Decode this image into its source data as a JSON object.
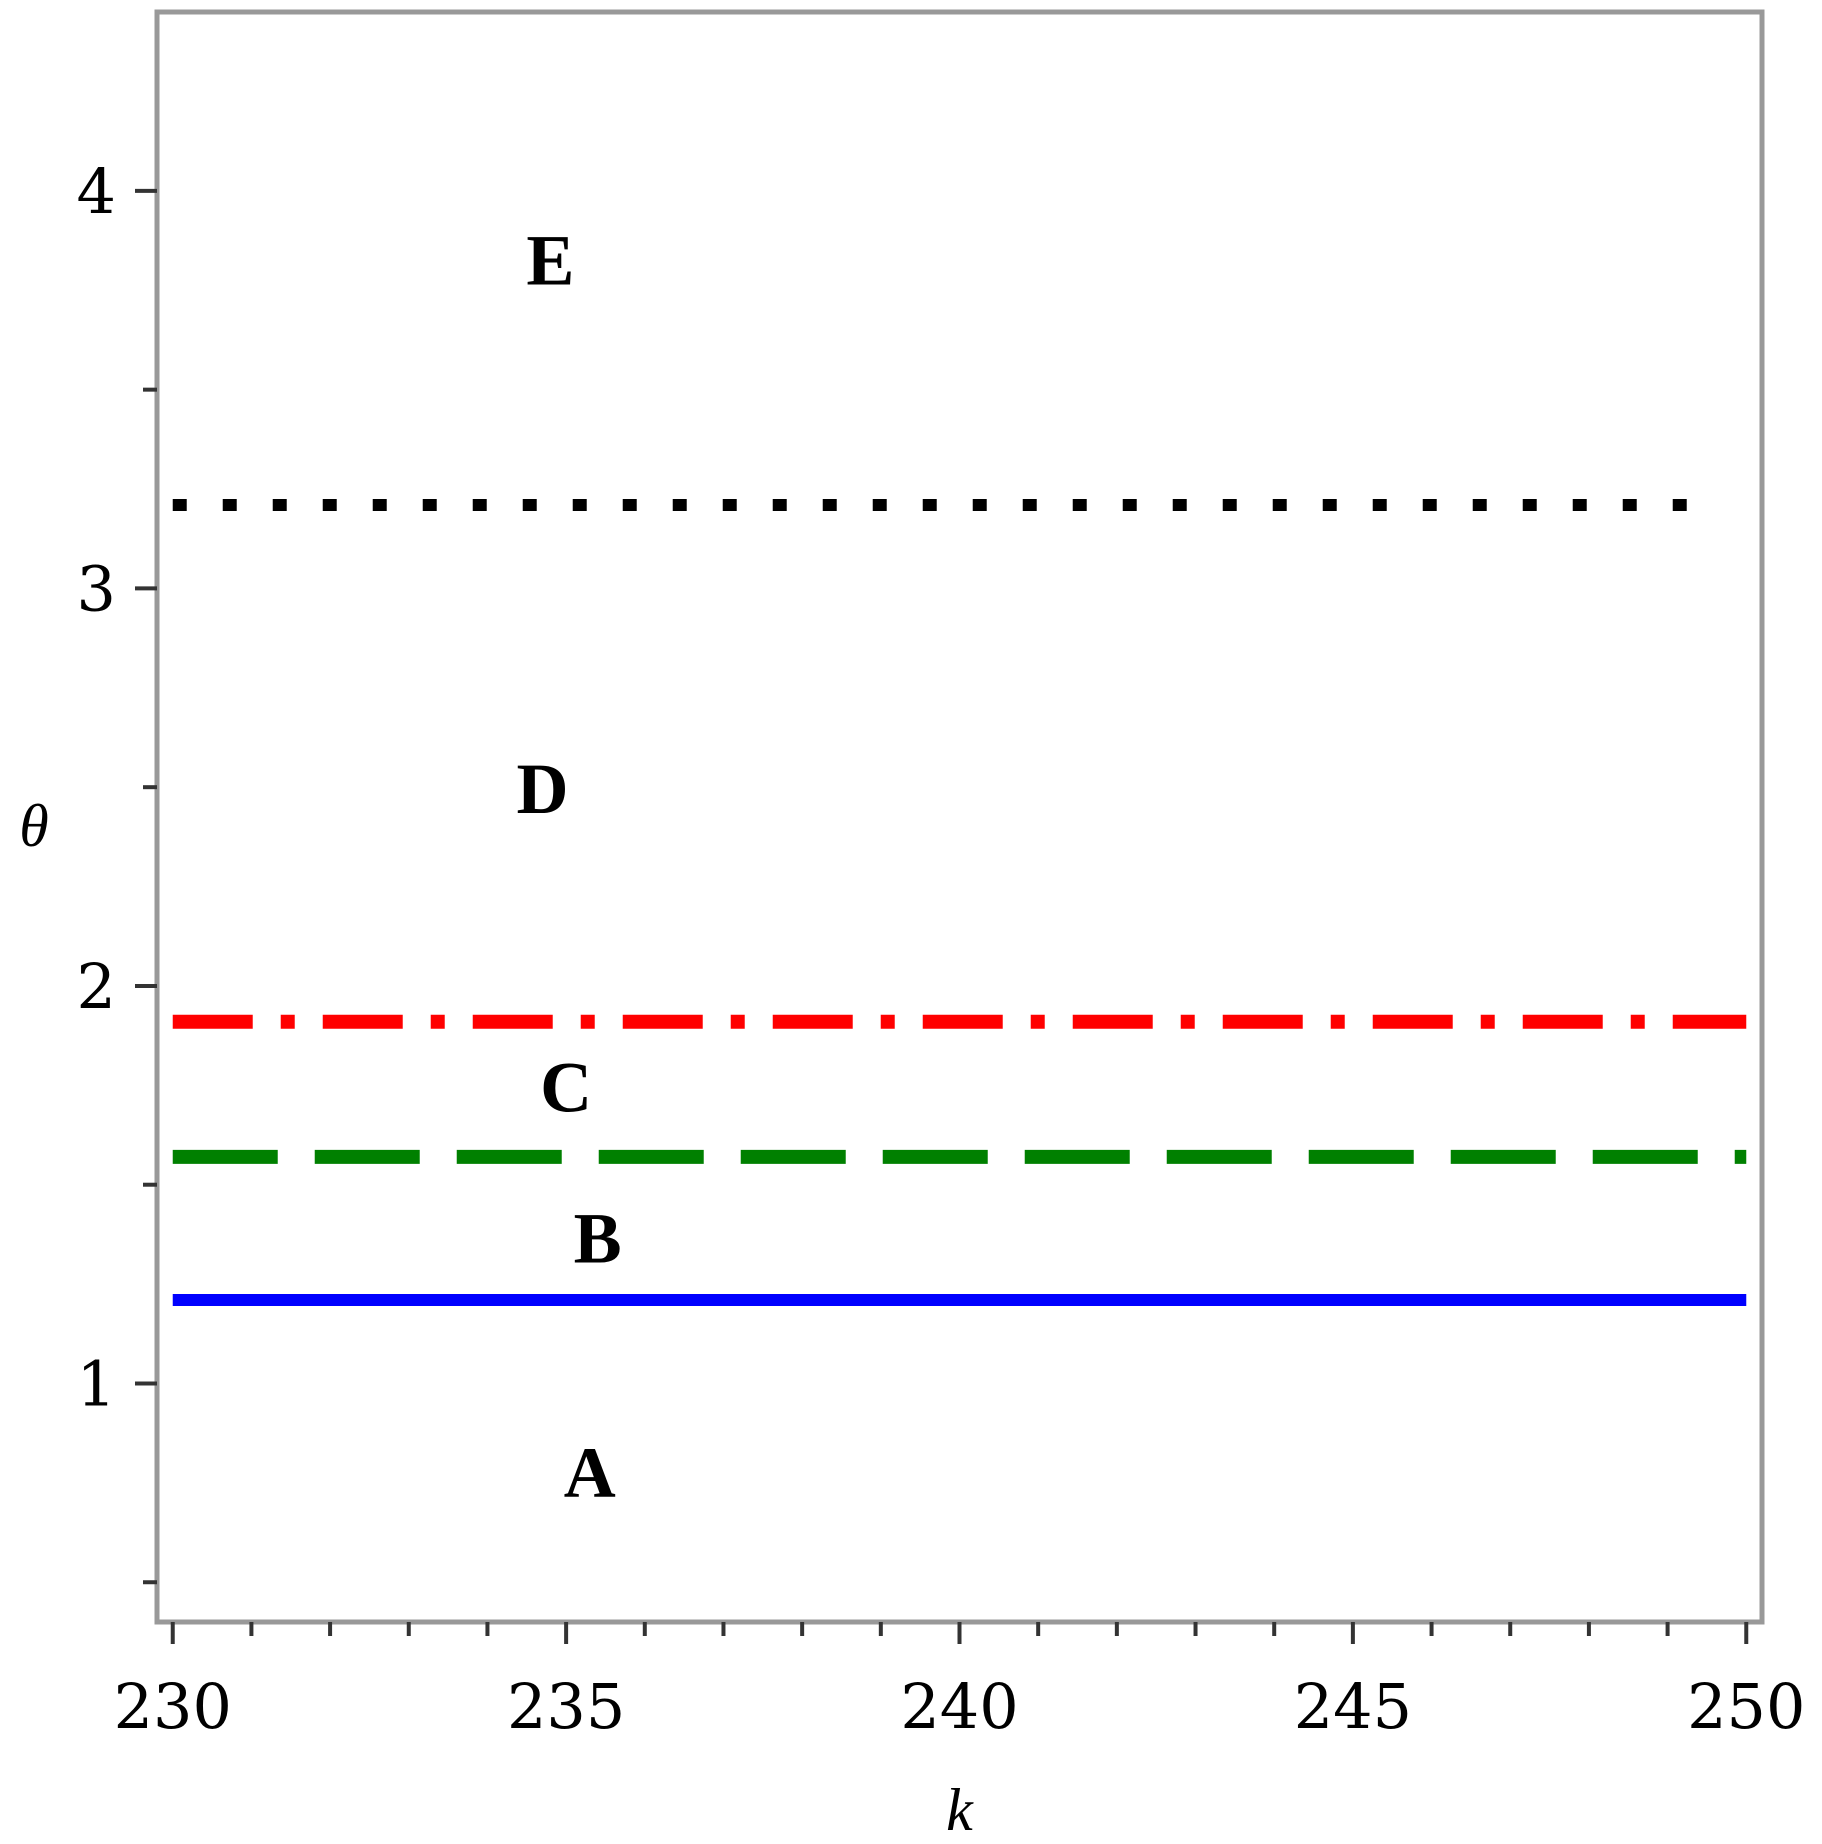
{
  "chart_data": {
    "type": "line",
    "title": "",
    "xlabel": "k",
    "ylabel": "θ",
    "xlim": [
      229.8,
      250.2
    ],
    "ylim": [
      0.4,
      4.45
    ],
    "x_ticks": [
      230,
      235,
      240,
      245,
      250
    ],
    "x_tick_labels": [
      "230",
      "235",
      "240",
      "245",
      "250"
    ],
    "x_minor_step": 1,
    "y_ticks": [
      1,
      2,
      3,
      4
    ],
    "y_tick_labels": [
      "1",
      "2",
      "3",
      "4"
    ],
    "y_minor_step": 0.5,
    "grid": false,
    "series": [
      {
        "x": [
          230,
          250
        ],
        "y": [
          1.21,
          1.21
        ],
        "color": "#0000ff",
        "style": "solid"
      },
      {
        "x": [
          230,
          250
        ],
        "y": [
          1.57,
          1.57
        ],
        "color": "#008000",
        "style": "dash"
      },
      {
        "x": [
          230,
          250
        ],
        "y": [
          1.91,
          1.91
        ],
        "color": "#ff0000",
        "style": "dashdot"
      },
      {
        "x": [
          230,
          249.6
        ],
        "y": [
          3.21,
          3.21
        ],
        "color": "#000000",
        "style": "dot"
      }
    ],
    "annotations": [
      {
        "text": "A",
        "x": 235.3,
        "y": 0.78
      },
      {
        "text": "B",
        "x": 235.4,
        "y": 1.37
      },
      {
        "text": "C",
        "x": 235.0,
        "y": 1.75
      },
      {
        "text": "D",
        "x": 234.7,
        "y": 2.5
      },
      {
        "text": "E",
        "x": 234.8,
        "y": 3.83
      }
    ]
  }
}
